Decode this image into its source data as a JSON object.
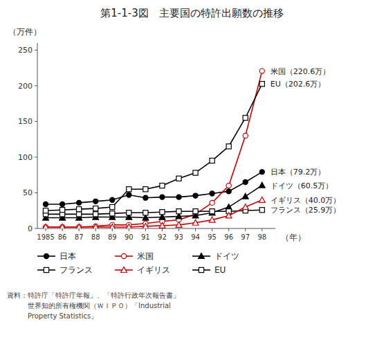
{
  "chart_data": {
    "type": "line",
    "title": "第1-1-3図　主要国の特許出願数の推移",
    "y_label": "（万件）",
    "x_label": "（年）",
    "x": [
      1985,
      1986,
      1987,
      1988,
      1989,
      1990,
      1991,
      1992,
      1993,
      1994,
      1995,
      1996,
      1997,
      1998
    ],
    "xlim": [
      1984.5,
      1998.8
    ],
    "xticks": [
      1985,
      {
        "value": 1986,
        "label": "86"
      },
      {
        "value": 1987,
        "label": "87"
      },
      {
        "value": 1988,
        "label": "88"
      },
      {
        "value": 1989,
        "label": "89"
      },
      {
        "value": 1990,
        "label": "90"
      },
      {
        "value": 1991,
        "label": "91"
      },
      {
        "value": 1992,
        "label": "92"
      },
      {
        "value": 1993,
        "label": "93"
      },
      {
        "value": 1994,
        "label": "94"
      },
      {
        "value": 1995,
        "label": "95"
      },
      {
        "value": 1996,
        "label": "96"
      },
      {
        "value": 1997,
        "label": "97"
      },
      {
        "value": 1998,
        "label": "98"
      }
    ],
    "ylim": [
      0,
      260
    ],
    "yticks": [
      0,
      50,
      100,
      150,
      200,
      250
    ],
    "grid": false,
    "legend": "bottom",
    "series": [
      {
        "name": "日本",
        "color": "#000000",
        "marker": "circle",
        "values": [
          34,
          34,
          36,
          38,
          40,
          47,
          43,
          44,
          44,
          46,
          49,
          52,
          65,
          79.2
        ]
      },
      {
        "name": "米国",
        "color": "#cc0000",
        "marker": "open-circle",
        "values": [
          2,
          2,
          2,
          3,
          5,
          5,
          7,
          10,
          12,
          20,
          36,
          60,
          130,
          220.6
        ]
      },
      {
        "name": "ドイツ",
        "color": "#000000",
        "marker": "triangle",
        "values": [
          15,
          15,
          15,
          16,
          16,
          16,
          15,
          16,
          17,
          18,
          22,
          30,
          45,
          60.5
        ]
      },
      {
        "name": "フランス",
        "color": "#000000",
        "marker": "open-square",
        "values": [
          20,
          20,
          20,
          20,
          21,
          22,
          22,
          23,
          24,
          24,
          24,
          24,
          25,
          25.9
        ]
      },
      {
        "name": "イギリス",
        "color": "#cc0000",
        "marker": "open-triangle",
        "values": [
          2,
          2,
          2,
          2,
          2,
          2,
          3,
          4,
          5,
          8,
          12,
          18,
          30,
          40.0
        ]
      },
      {
        "name": "EU",
        "color": "#000000",
        "marker": "open-square",
        "values": [
          25,
          26,
          27,
          28,
          30,
          55,
          55,
          60,
          70,
          78,
          95,
          115,
          155,
          202.6
        ]
      }
    ],
    "annotations": [
      {
        "text": "米国（220.6万）",
        "x": 1998,
        "y": 220.6
      },
      {
        "text": "EU（202.6万）",
        "x": 1998,
        "y": 202.6
      },
      {
        "text": "日本（79.2万）",
        "x": 1998,
        "y": 79.2
      },
      {
        "text": "ドイツ（60.5万）",
        "x": 1998,
        "y": 60.5
      },
      {
        "text": "イギリス（40.0万）",
        "x": 1998,
        "y": 40.0
      },
      {
        "text": "フランス（25.9万）",
        "x": 1998,
        "y": 25.9
      }
    ],
    "source": "資料：特許庁「特許庁年報」、「特許行政年次報告書」\n　　　世界知的所有権機関（ＷＩＰＯ）「Industrial\n　　　Property Statistics」"
  }
}
